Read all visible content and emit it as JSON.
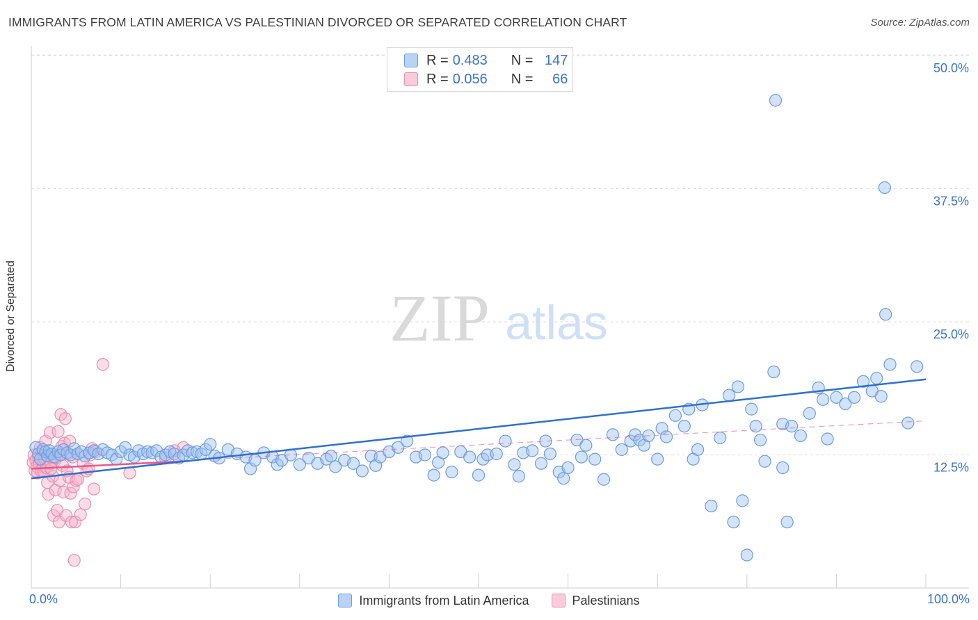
{
  "title": "IMMIGRANTS FROM LATIN AMERICA VS PALESTINIAN DIVORCED OR SEPARATED CORRELATION CHART",
  "source": "Source: ZipAtlas.com",
  "watermark": {
    "zip": "ZIP",
    "atlas": "atlas"
  },
  "colors": {
    "blue": "#3a74c9",
    "blue_fill": "#9ec2f2",
    "pink": "#e8578a",
    "pink_fill": "#f5b3c9",
    "grid": "#dddddd"
  },
  "legend_top": [
    {
      "label": "R =",
      "r": "0.483",
      "n_label": "N =",
      "n": "147",
      "color": "blue"
    },
    {
      "label": "R =",
      "r": "0.056",
      "n_label": "N =",
      "n": "66",
      "color": "pink"
    }
  ],
  "legend_bottom": [
    {
      "label": "Immigrants from Latin America",
      "color": "blue"
    },
    {
      "label": "Palestinians",
      "color": "pink"
    }
  ],
  "chart_data": {
    "type": "scatter",
    "title": "IMMIGRANTS FROM LATIN AMERICA VS PALESTINIAN DIVORCED OR SEPARATED CORRELATION CHART",
    "xlabel": "",
    "ylabel": "Divorced or Separated",
    "xlim": [
      0,
      100
    ],
    "ylim": [
      0,
      50
    ],
    "x_tick_labels": [
      "0.0%",
      "100.0%"
    ],
    "y_tick_labels": [
      "12.5%",
      "25.0%",
      "37.5%",
      "50.0%"
    ],
    "y_ticks": [
      12.5,
      25,
      37.5,
      50
    ],
    "grid": true,
    "series": [
      {
        "name": "Immigrants from Latin America",
        "color": "blue",
        "trend": {
          "x": [
            0,
            100
          ],
          "y": [
            10.3,
            19.6
          ]
        },
        "points": [
          [
            0.5,
            13.2
          ],
          [
            0.8,
            12.6
          ],
          [
            1.0,
            12.1
          ],
          [
            1.3,
            13.0
          ],
          [
            1.6,
            12.8
          ],
          [
            1.8,
            12.4
          ],
          [
            2.0,
            12.9
          ],
          [
            2.3,
            12.6
          ],
          [
            2.6,
            12.3
          ],
          [
            3.0,
            12.8
          ],
          [
            3.3,
            12.5
          ],
          [
            3.6,
            13.0
          ],
          [
            4.0,
            12.7
          ],
          [
            4.4,
            12.5
          ],
          [
            4.8,
            13.1
          ],
          [
            5.2,
            12.6
          ],
          [
            5.6,
            12.8
          ],
          [
            6.0,
            12.4
          ],
          [
            6.5,
            12.7
          ],
          [
            7.0,
            12.9
          ],
          [
            7.5,
            12.6
          ],
          [
            8.0,
            13.0
          ],
          [
            8.5,
            12.7
          ],
          [
            9.0,
            12.5
          ],
          [
            9.5,
            12.1
          ],
          [
            10.0,
            12.8
          ],
          [
            10.5,
            13.2
          ],
          [
            11.0,
            12.5
          ],
          [
            11.5,
            12.3
          ],
          [
            12.0,
            12.9
          ],
          [
            12.5,
            12.6
          ],
          [
            13.0,
            12.8
          ],
          [
            13.5,
            12.7
          ],
          [
            14.0,
            12.9
          ],
          [
            14.5,
            12.3
          ],
          [
            15.0,
            12.5
          ],
          [
            15.5,
            12.8
          ],
          [
            16.0,
            12.6
          ],
          [
            16.5,
            12.2
          ],
          [
            17.0,
            12.5
          ],
          [
            17.5,
            12.9
          ],
          [
            18.0,
            12.7
          ],
          [
            18.5,
            12.8
          ],
          [
            19.0,
            12.6
          ],
          [
            19.5,
            13.0
          ],
          [
            20.0,
            13.5
          ],
          [
            20.5,
            12.4
          ],
          [
            21.0,
            12.2
          ],
          [
            22.0,
            13.0
          ],
          [
            23.0,
            12.6
          ],
          [
            24.0,
            12.3
          ],
          [
            24.5,
            11.2
          ],
          [
            25.0,
            12.0
          ],
          [
            26.0,
            12.7
          ],
          [
            27.0,
            12.3
          ],
          [
            27.5,
            11.6
          ],
          [
            28.0,
            12.0
          ],
          [
            29.0,
            12.5
          ],
          [
            30.0,
            11.6
          ],
          [
            31.0,
            12.2
          ],
          [
            32.0,
            11.7
          ],
          [
            33.0,
            12.1
          ],
          [
            33.5,
            12.4
          ],
          [
            34.0,
            11.4
          ],
          [
            35.0,
            12.0
          ],
          [
            36.0,
            11.7
          ],
          [
            37.0,
            11.0
          ],
          [
            38.0,
            12.4
          ],
          [
            38.5,
            11.5
          ],
          [
            39.0,
            12.3
          ],
          [
            40.0,
            12.8
          ],
          [
            41.0,
            13.2
          ],
          [
            42.0,
            13.8
          ],
          [
            43.0,
            12.3
          ],
          [
            44.0,
            12.5
          ],
          [
            45.0,
            10.6
          ],
          [
            45.5,
            11.8
          ],
          [
            46.0,
            12.7
          ],
          [
            47.0,
            10.9
          ],
          [
            48.0,
            12.8
          ],
          [
            49.0,
            12.3
          ],
          [
            50.0,
            10.6
          ],
          [
            50.5,
            12.1
          ],
          [
            51.0,
            12.5
          ],
          [
            52.0,
            12.6
          ],
          [
            53.0,
            13.8
          ],
          [
            54.0,
            11.6
          ],
          [
            54.5,
            10.5
          ],
          [
            55.0,
            12.7
          ],
          [
            56.0,
            12.9
          ],
          [
            57.0,
            11.7
          ],
          [
            57.5,
            13.8
          ],
          [
            58.0,
            12.6
          ],
          [
            59.0,
            10.9
          ],
          [
            59.5,
            10.3
          ],
          [
            60.0,
            11.3
          ],
          [
            61.0,
            13.9
          ],
          [
            61.5,
            12.3
          ],
          [
            62.0,
            13.4
          ],
          [
            63.0,
            12.1
          ],
          [
            64.0,
            10.2
          ],
          [
            65.0,
            14.4
          ],
          [
            66.0,
            13.0
          ],
          [
            67.0,
            13.8
          ],
          [
            67.5,
            14.4
          ],
          [
            68.0,
            13.9
          ],
          [
            68.5,
            13.4
          ],
          [
            69.0,
            14.3
          ],
          [
            70.0,
            12.1
          ],
          [
            70.5,
            15.0
          ],
          [
            71.0,
            14.2
          ],
          [
            72.0,
            16.2
          ],
          [
            73.0,
            15.2
          ],
          [
            73.5,
            16.8
          ],
          [
            74.0,
            12.1
          ],
          [
            74.5,
            13.0
          ],
          [
            75.0,
            17.2
          ],
          [
            76.0,
            7.7
          ],
          [
            77.0,
            14.1
          ],
          [
            78.0,
            18.1
          ],
          [
            79.0,
            18.9
          ],
          [
            80.0,
            3.1
          ],
          [
            80.5,
            16.8
          ],
          [
            81.0,
            15.2
          ],
          [
            81.5,
            13.9
          ],
          [
            82.0,
            11.9
          ],
          [
            83.0,
            20.3
          ],
          [
            84.0,
            15.4
          ],
          [
            85.0,
            15.2
          ],
          [
            86.0,
            14.3
          ],
          [
            87.0,
            16.4
          ],
          [
            88.0,
            18.8
          ],
          [
            88.5,
            17.7
          ],
          [
            89.0,
            14.0
          ],
          [
            90.0,
            17.9
          ],
          [
            91.0,
            17.3
          ],
          [
            92.0,
            17.9
          ],
          [
            93.0,
            19.4
          ],
          [
            94.0,
            18.5
          ],
          [
            94.5,
            19.7
          ],
          [
            95.0,
            18.0
          ],
          [
            95.5,
            25.7
          ],
          [
            96.0,
            21.0
          ],
          [
            98.0,
            15.5
          ],
          [
            99.0,
            20.8
          ],
          [
            78.5,
            6.2
          ],
          [
            79.5,
            8.2
          ],
          [
            84.5,
            6.2
          ],
          [
            84.0,
            11.3
          ],
          [
            83.2,
            45.8
          ],
          [
            95.4,
            37.6
          ]
        ]
      },
      {
        "name": "Palestinians",
        "color": "pink",
        "trend": {
          "x": [
            0,
            17
          ],
          "y": [
            11.2,
            11.9
          ]
        },
        "trend_dashed": {
          "x": [
            0,
            100
          ],
          "y": [
            11.2,
            15.7
          ]
        },
        "points": [
          [
            0.2,
            11.8
          ],
          [
            0.3,
            12.5
          ],
          [
            0.4,
            11.0
          ],
          [
            0.5,
            12.0
          ],
          [
            0.6,
            11.4
          ],
          [
            0.7,
            10.8
          ],
          [
            0.8,
            12.3
          ],
          [
            0.9,
            11.6
          ],
          [
            1.0,
            13.2
          ],
          [
            1.1,
            11.0
          ],
          [
            1.2,
            12.8
          ],
          [
            1.3,
            11.5
          ],
          [
            1.4,
            10.9
          ],
          [
            1.5,
            12.1
          ],
          [
            1.6,
            13.8
          ],
          [
            1.7,
            11.3
          ],
          [
            1.8,
            9.9
          ],
          [
            1.9,
            8.8
          ],
          [
            2.0,
            12.6
          ],
          [
            2.1,
            14.6
          ],
          [
            2.2,
            11.7
          ],
          [
            2.3,
            12.3
          ],
          [
            2.4,
            10.5
          ],
          [
            2.5,
            6.8
          ],
          [
            2.6,
            11.9
          ],
          [
            2.7,
            9.2
          ],
          [
            2.8,
            12.2
          ],
          [
            2.9,
            7.3
          ],
          [
            3.0,
            14.7
          ],
          [
            3.1,
            6.2
          ],
          [
            3.2,
            10.1
          ],
          [
            3.3,
            16.3
          ],
          [
            3.4,
            13.3
          ],
          [
            3.5,
            11.5
          ],
          [
            3.6,
            9.0
          ],
          [
            3.7,
            13.6
          ],
          [
            3.8,
            15.9
          ],
          [
            3.9,
            6.8
          ],
          [
            4.0,
            11.0
          ],
          [
            4.1,
            12.6
          ],
          [
            4.2,
            10.4
          ],
          [
            4.3,
            13.8
          ],
          [
            4.4,
            8.9
          ],
          [
            4.5,
            6.2
          ],
          [
            4.6,
            12.3
          ],
          [
            4.7,
            9.5
          ],
          [
            4.8,
            2.6
          ],
          [
            4.9,
            6.2
          ],
          [
            5.0,
            10.1
          ],
          [
            5.2,
            10.2
          ],
          [
            5.5,
            6.9
          ],
          [
            5.8,
            11.7
          ],
          [
            6.0,
            7.9
          ],
          [
            6.2,
            11.0
          ],
          [
            6.4,
            11.2
          ],
          [
            6.6,
            12.5
          ],
          [
            6.8,
            13.1
          ],
          [
            7.0,
            9.3
          ],
          [
            7.2,
            12.8
          ],
          [
            8.0,
            21.0
          ],
          [
            11.0,
            10.8
          ],
          [
            15.0,
            12.2
          ],
          [
            17.0,
            13.2
          ],
          [
            16.0,
            12.9
          ],
          [
            3.2,
            12.5
          ],
          [
            2.2,
            11.2
          ]
        ]
      }
    ]
  }
}
